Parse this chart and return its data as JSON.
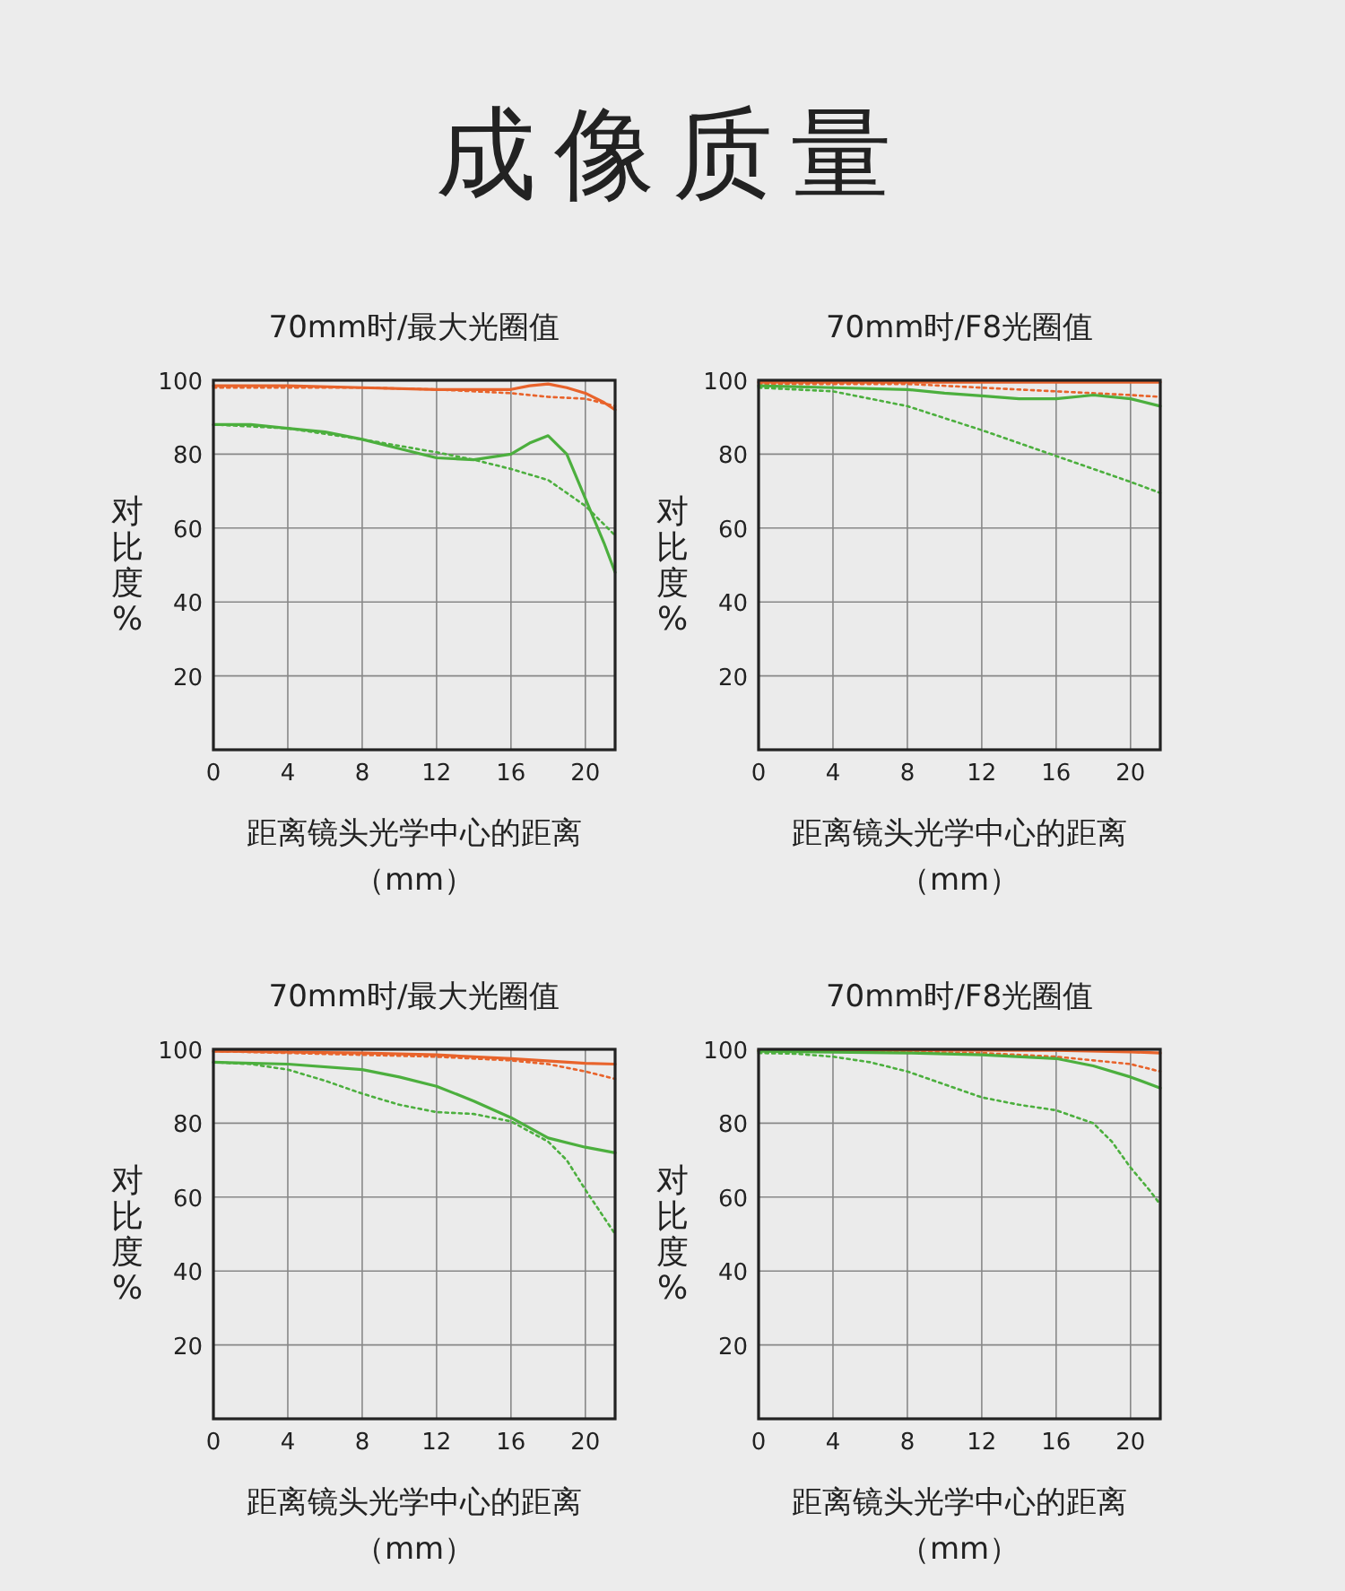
{
  "chart_data": [
    {
      "type": "line",
      "title": "70mm时/最大光圈值",
      "annotations": [
        "成像质量"
      ],
      "xlabel": "距离镜头光学中心的距离（mm）",
      "ylabel": "对比度%",
      "xlim": [
        0,
        21.6
      ],
      "ylim": [
        0,
        100
      ],
      "xticks": [
        0,
        4,
        8,
        12,
        16,
        20
      ],
      "yticks": [
        20,
        40,
        60,
        80,
        100
      ],
      "grid": true,
      "series": [
        {
          "color": "#e8632b",
          "line_style": "solid",
          "x": [
            0,
            4,
            8,
            12,
            16,
            17,
            18,
            19,
            20,
            21,
            21.6
          ],
          "values": [
            98.5,
            98.5,
            98,
            97.5,
            97.5,
            98.5,
            99,
            98,
            96.5,
            94,
            92
          ]
        },
        {
          "color": "#e8632b",
          "line_style": "dotted",
          "x": [
            0,
            4,
            8,
            12,
            16,
            18,
            20,
            21.6
          ],
          "values": [
            98,
            98,
            98,
            97.5,
            96.5,
            95.5,
            95,
            93
          ]
        },
        {
          "color": "#4caf3e",
          "line_style": "solid",
          "x": [
            0,
            2,
            4,
            6,
            8,
            10,
            12,
            14,
            16,
            17,
            18,
            19,
            20,
            21,
            21.6
          ],
          "values": [
            88,
            88,
            87,
            86,
            84,
            81.5,
            79,
            78.5,
            80,
            83,
            85,
            80,
            68,
            56,
            48
          ]
        },
        {
          "color": "#4caf3e",
          "line_style": "dotted",
          "x": [
            0,
            4,
            8,
            12,
            14,
            16,
            18,
            20,
            21.6
          ],
          "values": [
            88,
            87,
            84,
            80.5,
            78.5,
            76,
            73,
            66,
            58
          ]
        }
      ]
    },
    {
      "type": "line",
      "title": "70mm时/F8光圈值",
      "xlabel": "距离镜头光学中心的距离（mm）",
      "ylabel": "对比度%",
      "xlim": [
        0,
        21.6
      ],
      "ylim": [
        0,
        100
      ],
      "xticks": [
        0,
        4,
        8,
        12,
        16,
        20
      ],
      "yticks": [
        20,
        40,
        60,
        80,
        100
      ],
      "grid": true,
      "series": [
        {
          "color": "#e8632b",
          "line_style": "solid",
          "x": [
            0,
            8,
            16,
            21.6
          ],
          "values": [
            99.5,
            99.5,
            99.5,
            99.5
          ]
        },
        {
          "color": "#e8632b",
          "line_style": "dotted",
          "x": [
            0,
            4,
            8,
            12,
            16,
            20,
            21.6
          ],
          "values": [
            99,
            99,
            99,
            98,
            97,
            96,
            95.5
          ]
        },
        {
          "color": "#4caf3e",
          "line_style": "solid",
          "x": [
            0,
            4,
            8,
            10,
            12,
            14,
            16,
            18,
            20,
            21.6
          ],
          "values": [
            98.5,
            98,
            97.5,
            96.5,
            95.8,
            95,
            95,
            96,
            95,
            93
          ]
        },
        {
          "color": "#4caf3e",
          "line_style": "dotted",
          "x": [
            0,
            2,
            4,
            8,
            12,
            16,
            20,
            21.6
          ],
          "values": [
            98,
            97.5,
            97,
            93,
            86.5,
            79.5,
            72.5,
            69.5
          ]
        }
      ]
    },
    {
      "type": "line",
      "title": "70mm时/最大光圈值",
      "xlabel": "距离镜头光学中心的距离（mm）",
      "ylabel": "对比度%",
      "xlim": [
        0,
        21.6
      ],
      "ylim": [
        0,
        100
      ],
      "xticks": [
        0,
        4,
        8,
        12,
        16,
        20
      ],
      "yticks": [
        20,
        40,
        60,
        80,
        100
      ],
      "grid": true,
      "series": [
        {
          "color": "#e8632b",
          "line_style": "solid",
          "x": [
            0,
            8,
            12,
            16,
            20,
            21.6
          ],
          "values": [
            99.5,
            99,
            98.5,
            97.5,
            96.2,
            96
          ]
        },
        {
          "color": "#e8632b",
          "line_style": "dotted",
          "x": [
            0,
            8,
            12,
            16,
            18,
            20,
            21.6
          ],
          "values": [
            99.5,
            98.5,
            98,
            97,
            96,
            94,
            92
          ]
        },
        {
          "color": "#4caf3e",
          "line_style": "solid",
          "x": [
            0,
            4,
            8,
            10,
            12,
            14,
            16,
            18,
            20,
            21.6
          ],
          "values": [
            96.5,
            96,
            94.5,
            92.5,
            90,
            86,
            81.5,
            76,
            73.5,
            72
          ]
        },
        {
          "color": "#4caf3e",
          "line_style": "dotted",
          "x": [
            0,
            2,
            4,
            6,
            8,
            10,
            12,
            14,
            16,
            18,
            19,
            20,
            21.6
          ],
          "values": [
            96.5,
            96,
            94.5,
            91.5,
            88,
            85,
            83,
            82.5,
            80.5,
            75,
            70,
            62,
            50
          ]
        }
      ]
    },
    {
      "type": "line",
      "title": "70mm时/F8光圈值",
      "xlabel": "距离镜头光学中心的距离（mm）",
      "ylabel": "对比度%",
      "xlim": [
        0,
        21.6
      ],
      "ylim": [
        0,
        100
      ],
      "xticks": [
        0,
        4,
        8,
        12,
        16,
        20
      ],
      "yticks": [
        20,
        40,
        60,
        80,
        100
      ],
      "grid": true,
      "series": [
        {
          "color": "#e8632b",
          "line_style": "solid",
          "x": [
            0,
            8,
            16,
            20,
            21.6
          ],
          "values": [
            99.8,
            99.8,
            99.7,
            99.3,
            99
          ]
        },
        {
          "color": "#e8632b",
          "line_style": "dotted",
          "x": [
            0,
            8,
            12,
            16,
            18,
            20,
            21.6
          ],
          "values": [
            99.5,
            99.3,
            99,
            98,
            97,
            96,
            94
          ]
        },
        {
          "color": "#4caf3e",
          "line_style": "solid",
          "x": [
            0,
            8,
            12,
            16,
            18,
            20,
            21.6
          ],
          "values": [
            99.5,
            99,
            98.5,
            97.5,
            95.5,
            92.5,
            89.5
          ]
        },
        {
          "color": "#4caf3e",
          "line_style": "dotted",
          "x": [
            0,
            2,
            4,
            6,
            8,
            10,
            12,
            14,
            16,
            18,
            19,
            20,
            21,
            21.6
          ],
          "values": [
            99,
            98.8,
            98,
            96.5,
            94,
            90.5,
            87,
            85,
            83.5,
            80,
            75,
            68,
            62,
            58
          ]
        }
      ]
    }
  ]
}
